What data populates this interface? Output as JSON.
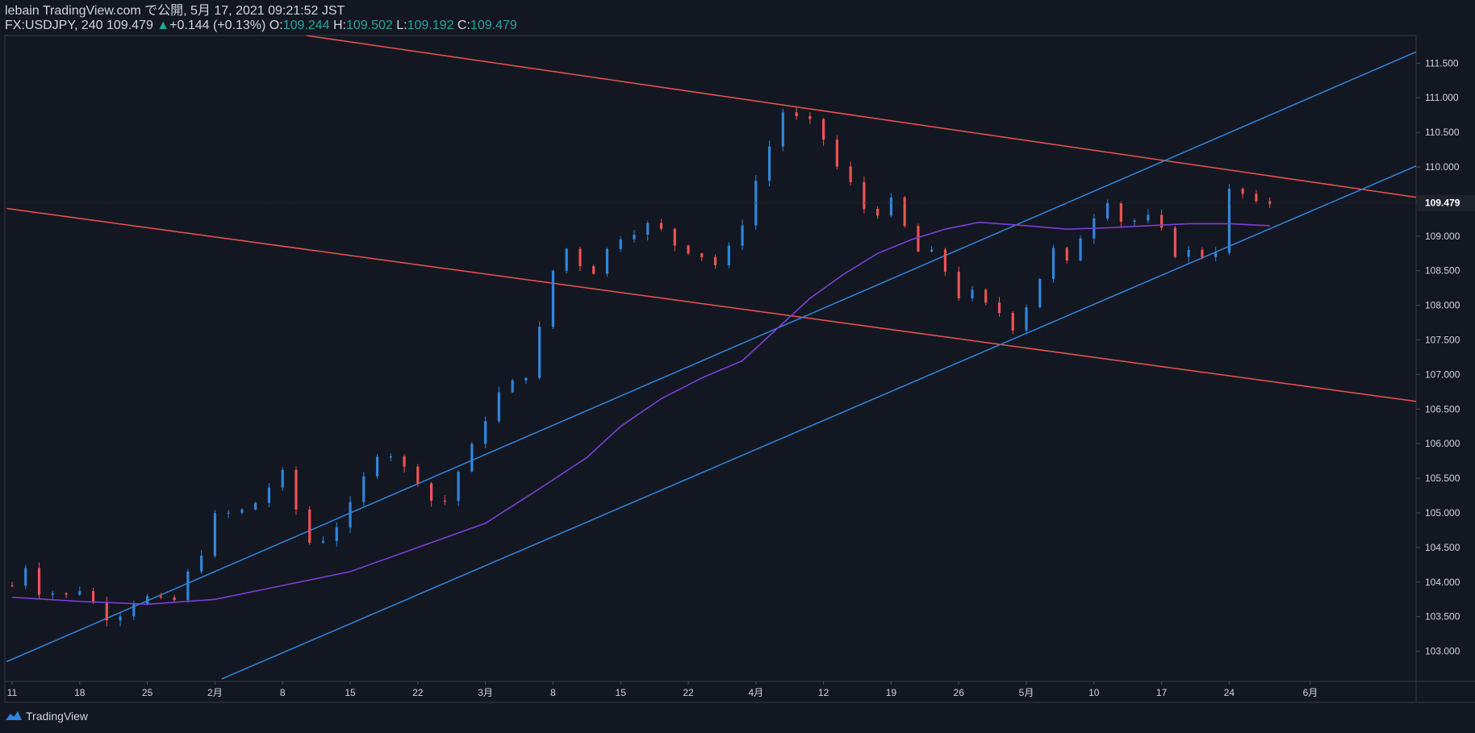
{
  "header": {
    "line1": "lebain TradingView.com で公開, 5月 17, 2021 09:21:52 JST",
    "symbol": "FX:USDJPY, 240",
    "last": "109.479",
    "change_arrow": "▲",
    "change": "+0.144 (+0.13%)",
    "o_label": "O:",
    "o_value": "109.244",
    "h_label": "H:",
    "h_value": "109.502",
    "l_label": "L:",
    "l_value": "109.192",
    "c_label": "C:",
    "c_value": "109.479"
  },
  "footer": {
    "brand": "TradingView",
    "logo_icon": "tradingview-logo-icon"
  },
  "colors": {
    "background": "#131722",
    "up": "#2f86dc",
    "down": "#ef5350",
    "ma": "#7e3fd6",
    "channel_red": "#ef5350",
    "channel_blue": "#2f86dc",
    "text": "#d1d4dc",
    "axis_line": "#363a45",
    "price_label_bg": "#1e222d"
  },
  "chart_data": {
    "type": "candlestick",
    "symbol": "FX:USDJPY",
    "timeframe": "240",
    "ylim": [
      102.6,
      111.9
    ],
    "y_ticks": [
      "111.500",
      "111.000",
      "110.500",
      "110.000",
      "109.500",
      "109.000",
      "108.500",
      "108.000",
      "107.500",
      "107.000",
      "106.500",
      "106.000",
      "105.500",
      "105.000",
      "104.500",
      "104.000",
      "103.500",
      "103.000"
    ],
    "current_price": "109.479",
    "x_ticks": [
      "11",
      "18",
      "25",
      "2月",
      "8",
      "15",
      "22",
      "3月",
      "8",
      "15",
      "22",
      "4月",
      "12",
      "19",
      "26",
      "5月",
      "10",
      "17",
      "24",
      "6月"
    ],
    "x_ticks_week_index": [
      0,
      1,
      2,
      3,
      4,
      5,
      6,
      7,
      8,
      9,
      10,
      11,
      12,
      13,
      14,
      15,
      16,
      17,
      18,
      19.2
    ],
    "close_path": [
      [
        0,
        103.95
      ],
      [
        0.15,
        104.25
      ],
      [
        0.3,
        104.2
      ],
      [
        0.45,
        103.7
      ],
      [
        0.6,
        103.85
      ],
      [
        0.8,
        103.8
      ],
      [
        1.0,
        103.9
      ],
      [
        1.2,
        103.7
      ],
      [
        1.5,
        103.4
      ],
      [
        1.7,
        103.7
      ],
      [
        1.9,
        103.75
      ],
      [
        2.1,
        103.8
      ],
      [
        2.35,
        103.6
      ],
      [
        2.5,
        104.0
      ],
      [
        2.75,
        104.3
      ],
      [
        3.0,
        104.95
      ],
      [
        3.25,
        105.0
      ],
      [
        3.5,
        105.05
      ],
      [
        3.75,
        105.3
      ],
      [
        3.95,
        105.6
      ],
      [
        4.1,
        105.5
      ],
      [
        4.3,
        104.6
      ],
      [
        4.5,
        104.55
      ],
      [
        4.7,
        104.7
      ],
      [
        4.95,
        105.0
      ],
      [
        5.15,
        105.4
      ],
      [
        5.35,
        105.8
      ],
      [
        5.5,
        106.0
      ],
      [
        5.7,
        105.7
      ],
      [
        5.95,
        105.55
      ],
      [
        6.15,
        105.3
      ],
      [
        6.3,
        104.95
      ],
      [
        6.5,
        105.4
      ],
      [
        6.7,
        105.8
      ],
      [
        6.9,
        106.1
      ],
      [
        7.05,
        106.5
      ],
      [
        7.25,
        106.8
      ],
      [
        7.45,
        106.9
      ],
      [
        7.6,
        107.0
      ],
      [
        7.75,
        107.4
      ],
      [
        7.85,
        107.9
      ],
      [
        8.0,
        108.5
      ],
      [
        8.1,
        108.65
      ],
      [
        8.25,
        108.9
      ],
      [
        8.4,
        108.6
      ],
      [
        8.6,
        108.5
      ],
      [
        8.8,
        108.8
      ],
      [
        9.0,
        109.0
      ],
      [
        9.25,
        109.1
      ],
      [
        9.5,
        109.2
      ],
      [
        9.75,
        108.9
      ],
      [
        10.0,
        108.8
      ],
      [
        10.25,
        108.7
      ],
      [
        10.45,
        108.55
      ],
      [
        10.65,
        108.9
      ],
      [
        10.85,
        109.3
      ],
      [
        11.0,
        109.8
      ],
      [
        11.2,
        110.3
      ],
      [
        11.4,
        110.8
      ],
      [
        11.6,
        110.7
      ],
      [
        11.9,
        110.6
      ],
      [
        12.1,
        110.2
      ],
      [
        12.3,
        109.8
      ],
      [
        12.5,
        109.7
      ],
      [
        12.7,
        109.1
      ],
      [
        12.9,
        109.6
      ],
      [
        13.1,
        109.4
      ],
      [
        13.3,
        108.85
      ],
      [
        13.5,
        108.7
      ],
      [
        13.7,
        108.8
      ],
      [
        13.85,
        108.35
      ],
      [
        13.95,
        108.05
      ],
      [
        14.1,
        108.3
      ],
      [
        14.3,
        108.05
      ],
      [
        14.5,
        107.95
      ],
      [
        14.7,
        107.85
      ],
      [
        14.85,
        107.6
      ],
      [
        15.0,
        108.0
      ],
      [
        15.25,
        108.5
      ],
      [
        15.45,
        108.9
      ],
      [
        15.6,
        108.6
      ],
      [
        15.8,
        109.0
      ],
      [
        16.0,
        109.3
      ],
      [
        16.15,
        109.65
      ],
      [
        16.3,
        109.3
      ],
      [
        16.5,
        109.15
      ],
      [
        16.7,
        109.3
      ],
      [
        16.95,
        109.2
      ],
      [
        17.1,
        108.8
      ],
      [
        17.3,
        108.7
      ],
      [
        17.5,
        108.85
      ],
      [
        17.7,
        108.6
      ],
      [
        17.85,
        108.9
      ],
      [
        18.0,
        109.65
      ],
      [
        18.2,
        109.6
      ],
      [
        18.35,
        109.5
      ],
      [
        18.5,
        109.35
      ],
      [
        18.6,
        109.48
      ]
    ],
    "moving_average_path": [
      [
        0,
        103.78
      ],
      [
        1.0,
        103.72
      ],
      [
        2.0,
        103.68
      ],
      [
        3.0,
        103.75
      ],
      [
        4.0,
        103.95
      ],
      [
        5.0,
        104.15
      ],
      [
        6.0,
        104.5
      ],
      [
        7.0,
        104.85
      ],
      [
        7.8,
        105.35
      ],
      [
        8.5,
        105.8
      ],
      [
        9.0,
        106.25
      ],
      [
        9.6,
        106.65
      ],
      [
        10.2,
        106.95
      ],
      [
        10.8,
        107.2
      ],
      [
        11.3,
        107.65
      ],
      [
        11.8,
        108.1
      ],
      [
        12.3,
        108.45
      ],
      [
        12.8,
        108.75
      ],
      [
        13.3,
        108.95
      ],
      [
        13.8,
        109.1
      ],
      [
        14.3,
        109.2
      ],
      [
        15.0,
        109.15
      ],
      [
        15.6,
        109.1
      ],
      [
        16.2,
        109.12
      ],
      [
        16.8,
        109.15
      ],
      [
        17.4,
        109.18
      ],
      [
        18.0,
        109.18
      ],
      [
        18.6,
        109.15
      ]
    ],
    "trendlines": [
      {
        "color": "red",
        "points": [
          [
            4.35,
            111.9
          ],
          [
            20.85,
            109.55
          ]
        ]
      },
      {
        "color": "red",
        "points": [
          [
            -0.08,
            109.4
          ],
          [
            20.85,
            106.6
          ]
        ]
      },
      {
        "color": "blue",
        "points": [
          [
            -0.08,
            102.85
          ],
          [
            20.85,
            111.7
          ]
        ]
      },
      {
        "color": "blue",
        "points": [
          [
            3.1,
            102.6
          ],
          [
            20.85,
            110.05
          ]
        ]
      }
    ]
  }
}
